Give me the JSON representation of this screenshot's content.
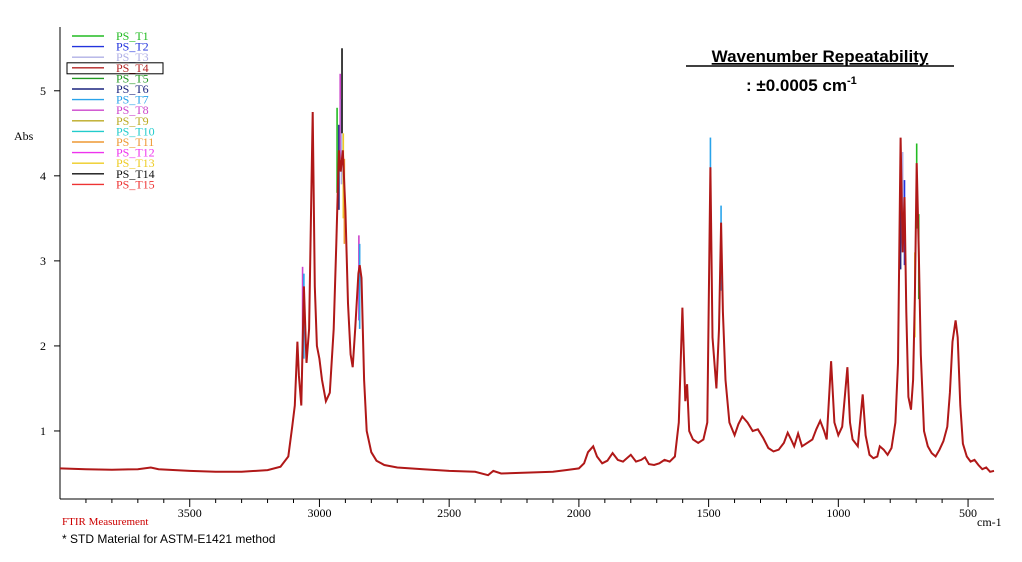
{
  "chart_data": {
    "type": "line",
    "ylabel": "Abs",
    "xunit": "cm-1",
    "xlim": [
      4000,
      400
    ],
    "ylim": [
      0.2,
      5.75
    ],
    "x_ticks": [
      3500,
      3000,
      2500,
      2000,
      1500,
      1000,
      500
    ],
    "x_tick_labels": [
      "3500",
      "3000",
      "2500",
      "2000",
      "1500",
      "1000",
      "500"
    ],
    "y_ticks": [
      1,
      2,
      3,
      4,
      5
    ],
    "y_tick_labels": [
      "1",
      "2",
      "3",
      "4",
      "5"
    ],
    "annotation_title": "Wavenumber Repeatability",
    "annotation_value": ": ±0.0005 cm",
    "annotation_exp": "-1",
    "footer_label": "FTIR Measurement",
    "footnote": "* STD Material for ASTM-E1421 method",
    "legend_highlight_index": 3,
    "series": [
      {
        "name": "PS_T1",
        "color": "#22bb22"
      },
      {
        "name": "PS_T2",
        "color": "#2233dd"
      },
      {
        "name": "PS_T3",
        "color": "#b0b0e6"
      },
      {
        "name": "PS_T4",
        "color": "#b22222"
      },
      {
        "name": "PS_T5",
        "color": "#229922"
      },
      {
        "name": "PS_T6",
        "color": "#1a237e"
      },
      {
        "name": "PS_T7",
        "color": "#29a3ea"
      },
      {
        "name": "PS_T8",
        "color": "#cc44cc"
      },
      {
        "name": "PS_T9",
        "color": "#bbaa22"
      },
      {
        "name": "PS_T10",
        "color": "#22cccc"
      },
      {
        "name": "PS_T11",
        "color": "#ee9933"
      },
      {
        "name": "PS_T12",
        "color": "#ee33ee"
      },
      {
        "name": "PS_T13",
        "color": "#eecc22"
      },
      {
        "name": "PS_T14",
        "color": "#111111"
      },
      {
        "name": "PS_T15",
        "color": "#ee3333"
      }
    ],
    "spectrum": [
      [
        4000,
        0.56
      ],
      [
        3900,
        0.55
      ],
      [
        3800,
        0.545
      ],
      [
        3700,
        0.55
      ],
      [
        3650,
        0.57
      ],
      [
        3620,
        0.55
      ],
      [
        3500,
        0.53
      ],
      [
        3400,
        0.52
      ],
      [
        3300,
        0.52
      ],
      [
        3200,
        0.54
      ],
      [
        3150,
        0.58
      ],
      [
        3120,
        0.7
      ],
      [
        3105,
        1.05
      ],
      [
        3095,
        1.3
      ],
      [
        3085,
        2.05
      ],
      [
        3079,
        1.65
      ],
      [
        3070,
        1.3
      ],
      [
        3060,
        2.7
      ],
      [
        3050,
        1.8
      ],
      [
        3040,
        2.2
      ],
      [
        3026,
        4.75
      ],
      [
        3018,
        2.7
      ],
      [
        3010,
        2.0
      ],
      [
        3000,
        1.85
      ],
      [
        2990,
        1.6
      ],
      [
        2975,
        1.35
      ],
      [
        2960,
        1.45
      ],
      [
        2945,
        2.2
      ],
      [
        2935,
        3.2
      ],
      [
        2925,
        4.3
      ],
      [
        2918,
        4.05
      ],
      [
        2910,
        4.3
      ],
      [
        2900,
        3.6
      ],
      [
        2890,
        2.5
      ],
      [
        2880,
        1.9
      ],
      [
        2872,
        1.75
      ],
      [
        2862,
        2.2
      ],
      [
        2850,
        2.85
      ],
      [
        2845,
        2.95
      ],
      [
        2838,
        2.8
      ],
      [
        2828,
        1.6
      ],
      [
        2818,
        1.0
      ],
      [
        2800,
        0.75
      ],
      [
        2780,
        0.65
      ],
      [
        2750,
        0.6
      ],
      [
        2700,
        0.57
      ],
      [
        2600,
        0.55
      ],
      [
        2500,
        0.53
      ],
      [
        2400,
        0.52
      ],
      [
        2350,
        0.48
      ],
      [
        2330,
        0.53
      ],
      [
        2300,
        0.5
      ],
      [
        2200,
        0.51
      ],
      [
        2100,
        0.52
      ],
      [
        2050,
        0.54
      ],
      [
        2000,
        0.56
      ],
      [
        1980,
        0.62
      ],
      [
        1965,
        0.75
      ],
      [
        1945,
        0.82
      ],
      [
        1930,
        0.7
      ],
      [
        1910,
        0.62
      ],
      [
        1890,
        0.65
      ],
      [
        1870,
        0.74
      ],
      [
        1850,
        0.66
      ],
      [
        1830,
        0.64
      ],
      [
        1800,
        0.72
      ],
      [
        1780,
        0.64
      ],
      [
        1760,
        0.66
      ],
      [
        1745,
        0.69
      ],
      [
        1730,
        0.61
      ],
      [
        1710,
        0.6
      ],
      [
        1690,
        0.62
      ],
      [
        1670,
        0.66
      ],
      [
        1650,
        0.64
      ],
      [
        1630,
        0.7
      ],
      [
        1615,
        1.1
      ],
      [
        1601,
        2.45
      ],
      [
        1590,
        1.35
      ],
      [
        1583,
        1.55
      ],
      [
        1575,
        1.0
      ],
      [
        1560,
        0.9
      ],
      [
        1540,
        0.86
      ],
      [
        1520,
        0.9
      ],
      [
        1505,
        1.1
      ],
      [
        1493,
        4.1
      ],
      [
        1485,
        2.1
      ],
      [
        1470,
        1.5
      ],
      [
        1460,
        2.2
      ],
      [
        1452,
        3.45
      ],
      [
        1445,
        2.4
      ],
      [
        1435,
        1.6
      ],
      [
        1420,
        1.1
      ],
      [
        1400,
        0.95
      ],
      [
        1385,
        1.08
      ],
      [
        1370,
        1.17
      ],
      [
        1350,
        1.1
      ],
      [
        1330,
        1.0
      ],
      [
        1310,
        1.02
      ],
      [
        1290,
        0.92
      ],
      [
        1270,
        0.8
      ],
      [
        1250,
        0.76
      ],
      [
        1230,
        0.78
      ],
      [
        1210,
        0.86
      ],
      [
        1195,
        0.98
      ],
      [
        1182,
        0.9
      ],
      [
        1170,
        0.82
      ],
      [
        1155,
        0.97
      ],
      [
        1140,
        0.82
      ],
      [
        1120,
        0.86
      ],
      [
        1100,
        0.9
      ],
      [
        1085,
        1.02
      ],
      [
        1070,
        1.12
      ],
      [
        1055,
        1.0
      ],
      [
        1045,
        0.9
      ],
      [
        1028,
        1.82
      ],
      [
        1015,
        1.1
      ],
      [
        1000,
        0.95
      ],
      [
        985,
        1.05
      ],
      [
        965,
        1.75
      ],
      [
        955,
        1.1
      ],
      [
        945,
        0.9
      ],
      [
        925,
        0.82
      ],
      [
        906,
        1.43
      ],
      [
        895,
        0.95
      ],
      [
        880,
        0.72
      ],
      [
        865,
        0.68
      ],
      [
        850,
        0.7
      ],
      [
        840,
        0.82
      ],
      [
        825,
        0.78
      ],
      [
        810,
        0.72
      ],
      [
        795,
        0.8
      ],
      [
        780,
        1.1
      ],
      [
        770,
        1.8
      ],
      [
        760,
        4.45
      ],
      [
        752,
        3.1
      ],
      [
        745,
        3.75
      ],
      [
        738,
        2.4
      ],
      [
        730,
        1.4
      ],
      [
        720,
        1.25
      ],
      [
        712,
        1.6
      ],
      [
        705,
        2.6
      ],
      [
        698,
        4.15
      ],
      [
        690,
        3.1
      ],
      [
        682,
        1.9
      ],
      [
        670,
        1.0
      ],
      [
        655,
        0.82
      ],
      [
        640,
        0.74
      ],
      [
        625,
        0.7
      ],
      [
        610,
        0.78
      ],
      [
        595,
        0.88
      ],
      [
        580,
        1.05
      ],
      [
        570,
        1.45
      ],
      [
        560,
        2.05
      ],
      [
        548,
        2.3
      ],
      [
        540,
        2.1
      ],
      [
        530,
        1.3
      ],
      [
        520,
        0.85
      ],
      [
        505,
        0.7
      ],
      [
        490,
        0.64
      ],
      [
        475,
        0.66
      ],
      [
        460,
        0.6
      ],
      [
        445,
        0.55
      ],
      [
        430,
        0.57
      ],
      [
        415,
        0.52
      ],
      [
        400,
        0.53
      ]
    ],
    "peak_spikes": [
      {
        "x": 3065,
        "y": 2.93,
        "color": "#cc44cc"
      },
      {
        "x": 3060,
        "y": 2.85,
        "color": "#29a3ea"
      },
      {
        "x": 2932,
        "y": 4.8,
        "color": "#22bb22"
      },
      {
        "x": 2925,
        "y": 4.6,
        "color": "#1a237e"
      },
      {
        "x": 2920,
        "y": 5.2,
        "color": "#cc44cc"
      },
      {
        "x": 2915,
        "y": 4.9,
        "color": "#b0b0e6"
      },
      {
        "x": 2913,
        "y": 5.5,
        "color": "#111111"
      },
      {
        "x": 2908,
        "y": 4.5,
        "color": "#eecc22"
      },
      {
        "x": 2904,
        "y": 4.2,
        "color": "#ee9933"
      },
      {
        "x": 2848,
        "y": 3.3,
        "color": "#cc44cc"
      },
      {
        "x": 2845,
        "y": 3.2,
        "color": "#29a3ea"
      },
      {
        "x": 1493,
        "y": 4.45,
        "color": "#29a3ea"
      },
      {
        "x": 1452,
        "y": 3.65,
        "color": "#29a3ea"
      },
      {
        "x": 760,
        "y": 3.9,
        "color": "#1a237e"
      },
      {
        "x": 752,
        "y": 4.28,
        "color": "#b0b0e6"
      },
      {
        "x": 745,
        "y": 3.95,
        "color": "#2233dd"
      },
      {
        "x": 698,
        "y": 4.38,
        "color": "#22bb22"
      },
      {
        "x": 690,
        "y": 3.55,
        "color": "#22bb22"
      },
      {
        "x": 705,
        "y": 3.1,
        "color": "#eecc22"
      }
    ]
  }
}
